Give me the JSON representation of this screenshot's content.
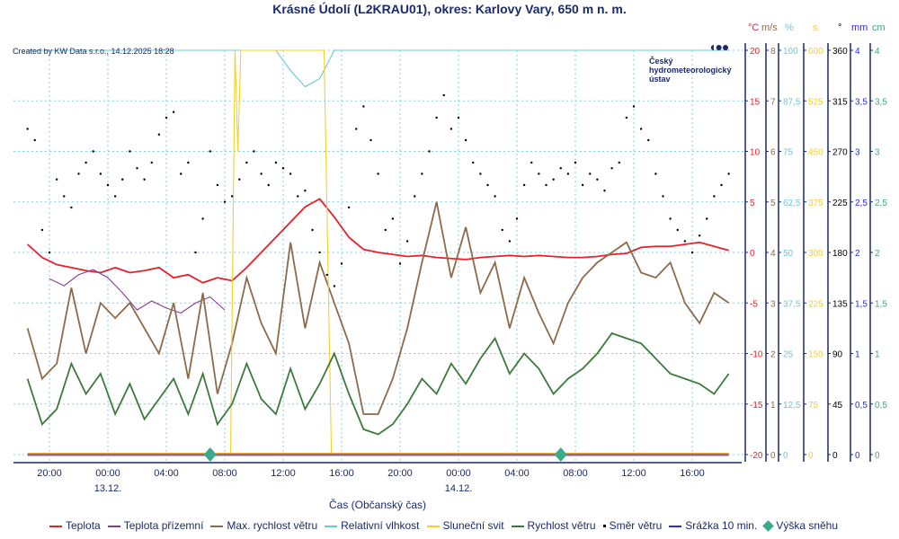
{
  "title": "Krásné Údolí (L2KRAU01), okres: Karlovy Vary, 650 m n. m.",
  "created": "Created by KW Data s.r.o., 14.12.2025 18:28",
  "logo": "Český hydrometeorologický ústav",
  "colors": {
    "temp": "#e8202a",
    "ground": "#8b3a9a",
    "gust": "#8c6a4a",
    "hum": "#6cc8d6",
    "sun": "#f7cf2a",
    "wind": "#3b7a3b",
    "dir": "#000000",
    "rain": "#2a2af0",
    "snow": "#3aaa8a",
    "axis": "#1a2a6c"
  },
  "chart_data": {
    "type": "line",
    "title": "Krásné Údolí (L2KRAU01), okres: Karlovy Vary, 650 m n. m.",
    "xlabel": "Čas (Občanský čas)",
    "x_unit": "hours since 12.12. 20:00",
    "x_ticks": [
      {
        "h": 0,
        "label": "20:00"
      },
      {
        "h": 4,
        "label": "00:00",
        "date": "13.12."
      },
      {
        "h": 8,
        "label": "04:00"
      },
      {
        "h": 12,
        "label": "08:00"
      },
      {
        "h": 16,
        "label": "12:00"
      },
      {
        "h": 20,
        "label": "16:00"
      },
      {
        "h": 24,
        "label": "20:00"
      },
      {
        "h": 28,
        "label": "00:00",
        "date": "14.12."
      },
      {
        "h": 32,
        "label": "04:00"
      },
      {
        "h": 36,
        "label": "08:00"
      },
      {
        "h": 40,
        "label": "12:00"
      },
      {
        "h": 44,
        "label": "16:00"
      }
    ],
    "axes": [
      {
        "unit": "°C",
        "min": -20,
        "max": 20,
        "ticks": [
          "20",
          "15",
          "10",
          "5",
          "0",
          "-5",
          "-10",
          "-15",
          "-20"
        ],
        "color": "#e8202a"
      },
      {
        "unit": "m/s",
        "min": 0,
        "max": 8,
        "ticks": [
          "8",
          "7",
          "6",
          "5",
          "4",
          "3",
          "2",
          "1",
          "0"
        ],
        "color": "#8c6a4a"
      },
      {
        "unit": "%",
        "min": 0,
        "max": 100,
        "ticks": [
          "100",
          "87,5",
          "75",
          "62,5",
          "50",
          "37,5",
          "25",
          "12,5",
          "0"
        ],
        "color": "#6cc8d6"
      },
      {
        "unit": "s",
        "min": 0,
        "max": 600,
        "ticks": [
          "600",
          "525",
          "450",
          "375",
          "300",
          "225",
          "150",
          "75",
          "0"
        ],
        "color": "#f7cf2a"
      },
      {
        "unit": "°",
        "min": 0,
        "max": 360,
        "ticks": [
          "360",
          "315",
          "270",
          "225",
          "180",
          "135",
          "90",
          "45",
          "0"
        ],
        "color": "#000000"
      },
      {
        "unit": "mm",
        "min": 0,
        "max": 4,
        "ticks": [
          "4",
          "3,5",
          "3",
          "2,5",
          "2",
          "1,5",
          "1",
          "0,5",
          "0"
        ],
        "color": "#2a2af0"
      },
      {
        "unit": "cm",
        "min": 0,
        "max": 4,
        "ticks": [
          "4",
          "3,5",
          "3",
          "2,5",
          "2",
          "1,5",
          "1",
          "0,5",
          "0"
        ],
        "color": "#3aaa8a"
      }
    ],
    "series": [
      {
        "name": "Teplota",
        "key": "temp",
        "axis": 0,
        "start": -1.5,
        "step": 1,
        "values": [
          0.8,
          -0.5,
          -1.2,
          -1.5,
          -1.8,
          -2,
          -1.5,
          -2,
          -1.8,
          -1.5,
          -2.5,
          -2.2,
          -3,
          -2.5,
          -2.8,
          -1.5,
          0,
          1.5,
          3,
          4.5,
          5.3,
          3.5,
          1.5,
          0.3,
          0,
          -0.2,
          -0.4,
          -0.3,
          -0.5,
          -0.6,
          -0.7,
          -0.5,
          -0.4,
          -0.3,
          -0.4,
          -0.3,
          -0.4,
          -0.5,
          -0.5,
          -0.4,
          -0.2,
          -0.1,
          0.5,
          0.6,
          0.6,
          0.8,
          1,
          0.6,
          0.2
        ]
      },
      {
        "name": "Teplota přízemní",
        "key": "ground",
        "axis": 0,
        "start": 0,
        "step": 1,
        "values": [
          -2.6,
          -3.3,
          -2.2,
          -1.7,
          -2.5,
          -4,
          -5.7,
          -4.8,
          -5.5,
          -6,
          -5,
          -4.4,
          -5.7
        ]
      },
      {
        "name": "Max. rychlost větru",
        "key": "gust",
        "axis": 1,
        "start": -1.5,
        "step": 1,
        "values": [
          2.5,
          1.5,
          1.8,
          3.3,
          2.0,
          3.0,
          2.7,
          3.0,
          2.5,
          2.0,
          3.0,
          1.5,
          3.2,
          1.2,
          2.2,
          3.5,
          2.6,
          2.0,
          4.2,
          2.5,
          3.8,
          3.0,
          2.2,
          0.8,
          0.8,
          1.5,
          2.5,
          3.8,
          5.0,
          3.5,
          4.5,
          3.2,
          3.8,
          2.5,
          3.5,
          2.8,
          2.2,
          3.0,
          3.5,
          3.8,
          4.0,
          4.2,
          3.6,
          3.5,
          3.8,
          3.0,
          2.6,
          3.2,
          3.0
        ]
      },
      {
        "name": "Relativní vlhkost",
        "key": "hum",
        "axis": 2,
        "start": -1.5,
        "step": 1,
        "values": [
          100,
          100,
          100,
          100,
          100,
          100,
          100,
          100,
          100,
          100,
          100,
          100,
          100,
          100,
          100,
          100,
          100,
          100,
          95,
          91,
          93,
          100,
          100,
          100,
          100,
          100,
          100,
          100,
          100,
          100,
          100,
          100,
          100,
          100,
          100,
          100,
          100,
          100,
          100,
          100,
          100,
          100,
          100,
          100,
          100,
          100,
          100,
          100,
          100
        ]
      },
      {
        "name": "Sluneční svit",
        "key": "sun",
        "axis": 3,
        "points": [
          [
            -1.5,
            0
          ],
          [
            12.4,
            0
          ],
          [
            12.7,
            600
          ],
          [
            12.9,
            450
          ],
          [
            13.1,
            600
          ],
          [
            18.8,
            600
          ],
          [
            19.3,
            0
          ],
          [
            46.5,
            0
          ]
        ]
      },
      {
        "name": "Rychlost větru",
        "key": "wind",
        "axis": 1,
        "start": -1.5,
        "step": 1,
        "values": [
          1.5,
          0.6,
          0.9,
          1.8,
          1.2,
          1.6,
          0.8,
          1.4,
          0.7,
          1.1,
          1.5,
          0.8,
          1.6,
          0.6,
          1.0,
          1.8,
          1.1,
          0.8,
          1.7,
          0.9,
          1.4,
          2.0,
          1.2,
          0.5,
          0.4,
          0.6,
          1.0,
          1.5,
          1.2,
          1.8,
          1.4,
          1.9,
          2.3,
          1.6,
          2.0,
          1.7,
          1.2,
          1.5,
          1.7,
          2.0,
          2.4,
          2.3,
          2.2,
          1.9,
          1.6,
          1.5,
          1.4,
          1.2,
          1.6
        ]
      },
      {
        "name": "Směr větru",
        "key": "dir",
        "axis": 4,
        "type": "scatter",
        "start": -1.5,
        "step": 0.5,
        "values": [
          290,
          280,
          200,
          180,
          245,
          230,
          220,
          250,
          260,
          270,
          250,
          240,
          230,
          245,
          270,
          255,
          245,
          260,
          285,
          300,
          305,
          250,
          260,
          180,
          210,
          270,
          240,
          225,
          230,
          245,
          260,
          270,
          250,
          240,
          260,
          255,
          250,
          230,
          235,
          200,
          180,
          160,
          150,
          170,
          220,
          290,
          310,
          280,
          250,
          200,
          210,
          170,
          190,
          230,
          250,
          270,
          300,
          320,
          290,
          300,
          280,
          260,
          250,
          240,
          230,
          200,
          190,
          210,
          240,
          260,
          250,
          240,
          245,
          255,
          250,
          260,
          240,
          250,
          245,
          235,
          255,
          260,
          300,
          310,
          290,
          280,
          250,
          230,
          210,
          200,
          190,
          180,
          195,
          210,
          230,
          240,
          250
        ]
      },
      {
        "name": "Srážka 10 min.",
        "key": "rain",
        "axis": 5,
        "points": [
          [
            -1.5,
            0
          ],
          [
            46.5,
            0
          ]
        ]
      },
      {
        "name": "Výška sněhu",
        "key": "snow",
        "axis": 6,
        "type": "marker",
        "points": [
          [
            11,
            0
          ],
          [
            35,
            0
          ]
        ]
      }
    ]
  }
}
